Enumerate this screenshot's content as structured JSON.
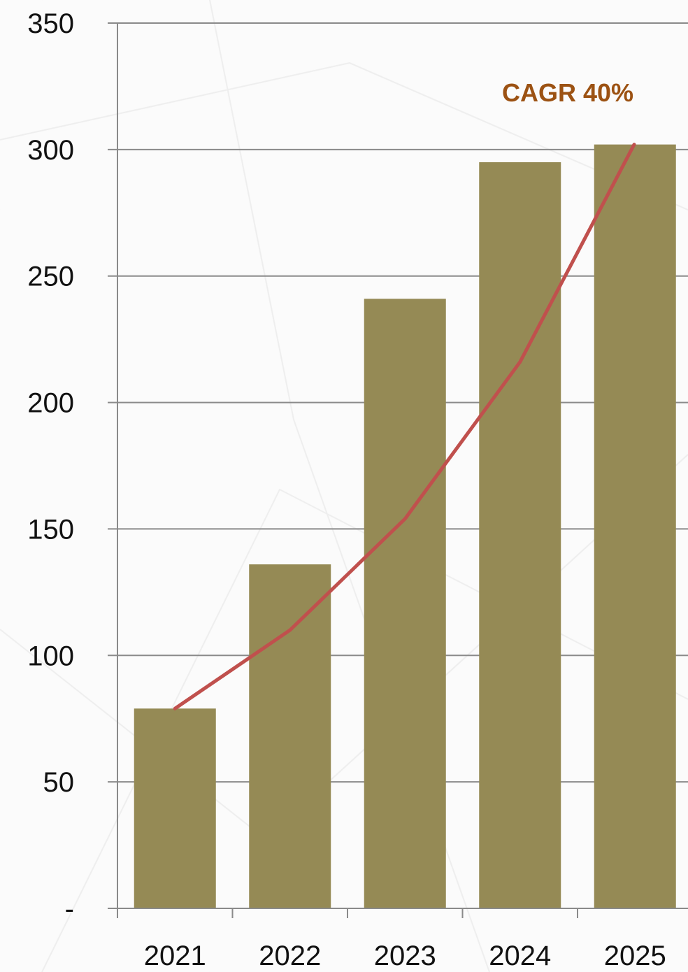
{
  "chart_data": {
    "type": "bar",
    "categories": [
      "2021",
      "2022",
      "2023",
      "2024",
      "2025"
    ],
    "series": [
      {
        "type": "bar",
        "values": [
          79,
          136,
          241,
          295,
          302
        ]
      },
      {
        "type": "line",
        "values": [
          79,
          110,
          154,
          216,
          302
        ]
      }
    ],
    "annotation": "CAGR 40%",
    "ylim": [
      0,
      350
    ],
    "yticks": [
      0,
      50,
      100,
      150,
      200,
      250,
      300,
      350
    ],
    "ytick_labels": [
      "-",
      "50",
      "100",
      "150",
      "200",
      "250",
      "300",
      "350"
    ],
    "grid": true,
    "colors": {
      "bar": "#958a55",
      "line": "#c0504d",
      "annotation": "#9c5213",
      "grid": "#8a8a8a"
    }
  }
}
